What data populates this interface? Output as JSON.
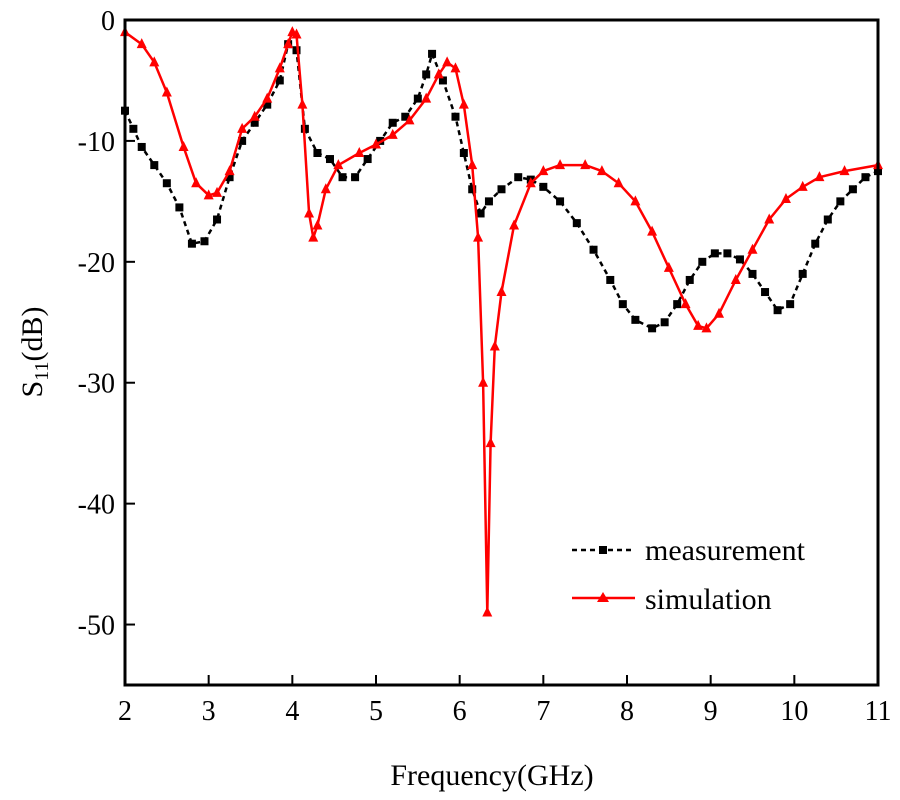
{
  "chart_data": {
    "type": "line",
    "title": "",
    "xlabel": "Frequency(GHz)",
    "ylabel_main": "S",
    "ylabel_sub": "11",
    "ylabel_unit": "(dB)",
    "xlim": [
      2,
      11
    ],
    "ylim": [
      -55,
      0
    ],
    "xticks": [
      2,
      3,
      4,
      5,
      6,
      7,
      8,
      9,
      10,
      11
    ],
    "yticks": [
      0,
      -10,
      -20,
      -30,
      -40,
      -50
    ],
    "grid": false,
    "legend_position": "bottom-right",
    "series": [
      {
        "name": "measurement",
        "color": "#000000",
        "style": "dashed",
        "marker": "square",
        "x": [
          2.0,
          2.1,
          2.2,
          2.35,
          2.5,
          2.65,
          2.8,
          2.95,
          3.1,
          3.25,
          3.4,
          3.55,
          3.7,
          3.85,
          3.95,
          4.05,
          4.15,
          4.3,
          4.45,
          4.6,
          4.75,
          4.9,
          5.05,
          5.2,
          5.35,
          5.5,
          5.6,
          5.67,
          5.8,
          5.95,
          6.05,
          6.15,
          6.25,
          6.35,
          6.5,
          6.7,
          6.85,
          7.0,
          7.2,
          7.4,
          7.6,
          7.8,
          7.95,
          8.1,
          8.3,
          8.45,
          8.6,
          8.75,
          8.9,
          9.05,
          9.2,
          9.35,
          9.5,
          9.65,
          9.8,
          9.95,
          10.1,
          10.25,
          10.4,
          10.55,
          10.7,
          10.85,
          11.0
        ],
        "y": [
          -7.5,
          -9,
          -10.5,
          -12,
          -13.5,
          -15.5,
          -18.5,
          -18.3,
          -16.5,
          -13,
          -10,
          -8.5,
          -7,
          -5,
          -2,
          -2.5,
          -9,
          -11,
          -11.5,
          -13,
          -13,
          -11.5,
          -10,
          -8.5,
          -8,
          -6.5,
          -4.5,
          -2.8,
          -5,
          -8,
          -11,
          -14,
          -16,
          -15,
          -14,
          -13,
          -13.2,
          -13.8,
          -15,
          -16.8,
          -19,
          -21.5,
          -23.5,
          -24.8,
          -25.5,
          -25,
          -23.5,
          -21.5,
          -20,
          -19.3,
          -19.3,
          -19.8,
          -21,
          -22.5,
          -24,
          -23.5,
          -21,
          -18.5,
          -16.5,
          -15,
          -14,
          -13,
          -12.5
        ]
      },
      {
        "name": "simulation",
        "color": "#ff0000",
        "style": "solid",
        "marker": "triangle",
        "x": [
          2.0,
          2.2,
          2.35,
          2.5,
          2.7,
          2.85,
          3.0,
          3.1,
          3.25,
          3.4,
          3.55,
          3.7,
          3.85,
          3.95,
          4.0,
          4.05,
          4.12,
          4.2,
          4.25,
          4.3,
          4.4,
          4.55,
          4.8,
          5.0,
          5.2,
          5.4,
          5.6,
          5.75,
          5.85,
          5.95,
          6.05,
          6.15,
          6.22,
          6.28,
          6.33,
          6.37,
          6.42,
          6.5,
          6.65,
          6.85,
          7.0,
          7.2,
          7.5,
          7.7,
          7.9,
          8.1,
          8.3,
          8.5,
          8.7,
          8.85,
          8.95,
          9.1,
          9.3,
          9.5,
          9.7,
          9.9,
          10.1,
          10.3,
          10.6,
          11.0
        ],
        "y": [
          -1,
          -2,
          -3.5,
          -6,
          -10.5,
          -13.5,
          -14.5,
          -14.3,
          -12.5,
          -9,
          -8,
          -6.5,
          -4,
          -2,
          -1,
          -1.2,
          -7,
          -16,
          -18,
          -17,
          -14,
          -12,
          -11,
          -10.3,
          -9.5,
          -8.3,
          -6.5,
          -4.5,
          -3.5,
          -4,
          -7,
          -12,
          -18,
          -30,
          -49,
          -35,
          -27,
          -22.5,
          -17,
          -13.5,
          -12.5,
          -12,
          -12,
          -12.5,
          -13.5,
          -15,
          -17.5,
          -20.5,
          -23.5,
          -25.3,
          -25.5,
          -24.3,
          -21.5,
          -19,
          -16.5,
          -14.8,
          -13.8,
          -13,
          -12.5,
          -12
        ]
      }
    ]
  }
}
